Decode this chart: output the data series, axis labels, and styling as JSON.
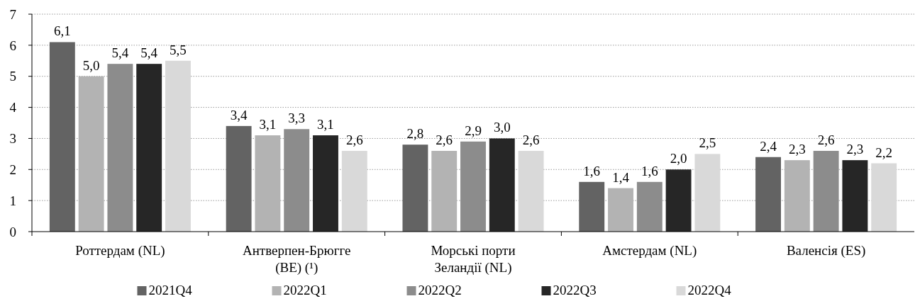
{
  "chart_data": {
    "type": "bar",
    "categories": [
      "Роттердам (NL)",
      "Антверпен-Брюгге (BE) (¹)",
      "Морські порти Зеландії (NL)",
      "Амстердам (NL)",
      "Валенсія (ES)"
    ],
    "series": [
      {
        "name": "2021Q4",
        "color": "#636363",
        "values": [
          6.1,
          3.4,
          2.8,
          1.6,
          2.4
        ],
        "value_labels": [
          "6,1",
          "3,4",
          "2,8",
          "1,6",
          "2,4"
        ]
      },
      {
        "name": "2022Q1",
        "color": "#b3b3b3",
        "values": [
          5.0,
          3.1,
          2.6,
          1.4,
          2.3
        ],
        "value_labels": [
          "5,0",
          "3,1",
          "2,6",
          "1,4",
          "2,3"
        ]
      },
      {
        "name": "2022Q2",
        "color": "#8c8c8c",
        "values": [
          5.4,
          3.3,
          2.9,
          1.6,
          2.6
        ],
        "value_labels": [
          "5,4",
          "3,3",
          "2,9",
          "1,6",
          "2,6"
        ]
      },
      {
        "name": "2022Q3",
        "color": "#262626",
        "values": [
          5.4,
          3.1,
          3.0,
          2.0,
          2.3
        ],
        "value_labels": [
          "5,4",
          "3,1",
          "3,0",
          "2,0",
          "2,3"
        ]
      },
      {
        "name": "2022Q4",
        "color": "#d9d9d9",
        "values": [
          5.5,
          2.6,
          2.6,
          2.5,
          2.2
        ],
        "value_labels": [
          "5,5",
          "2,6",
          "2,6",
          "2,5",
          "2,2"
        ]
      }
    ],
    "ylim": [
      0,
      7
    ],
    "yticks": [
      0,
      1,
      2,
      3,
      4,
      5,
      6,
      7
    ],
    "grid": "y",
    "legend": "bottom"
  }
}
